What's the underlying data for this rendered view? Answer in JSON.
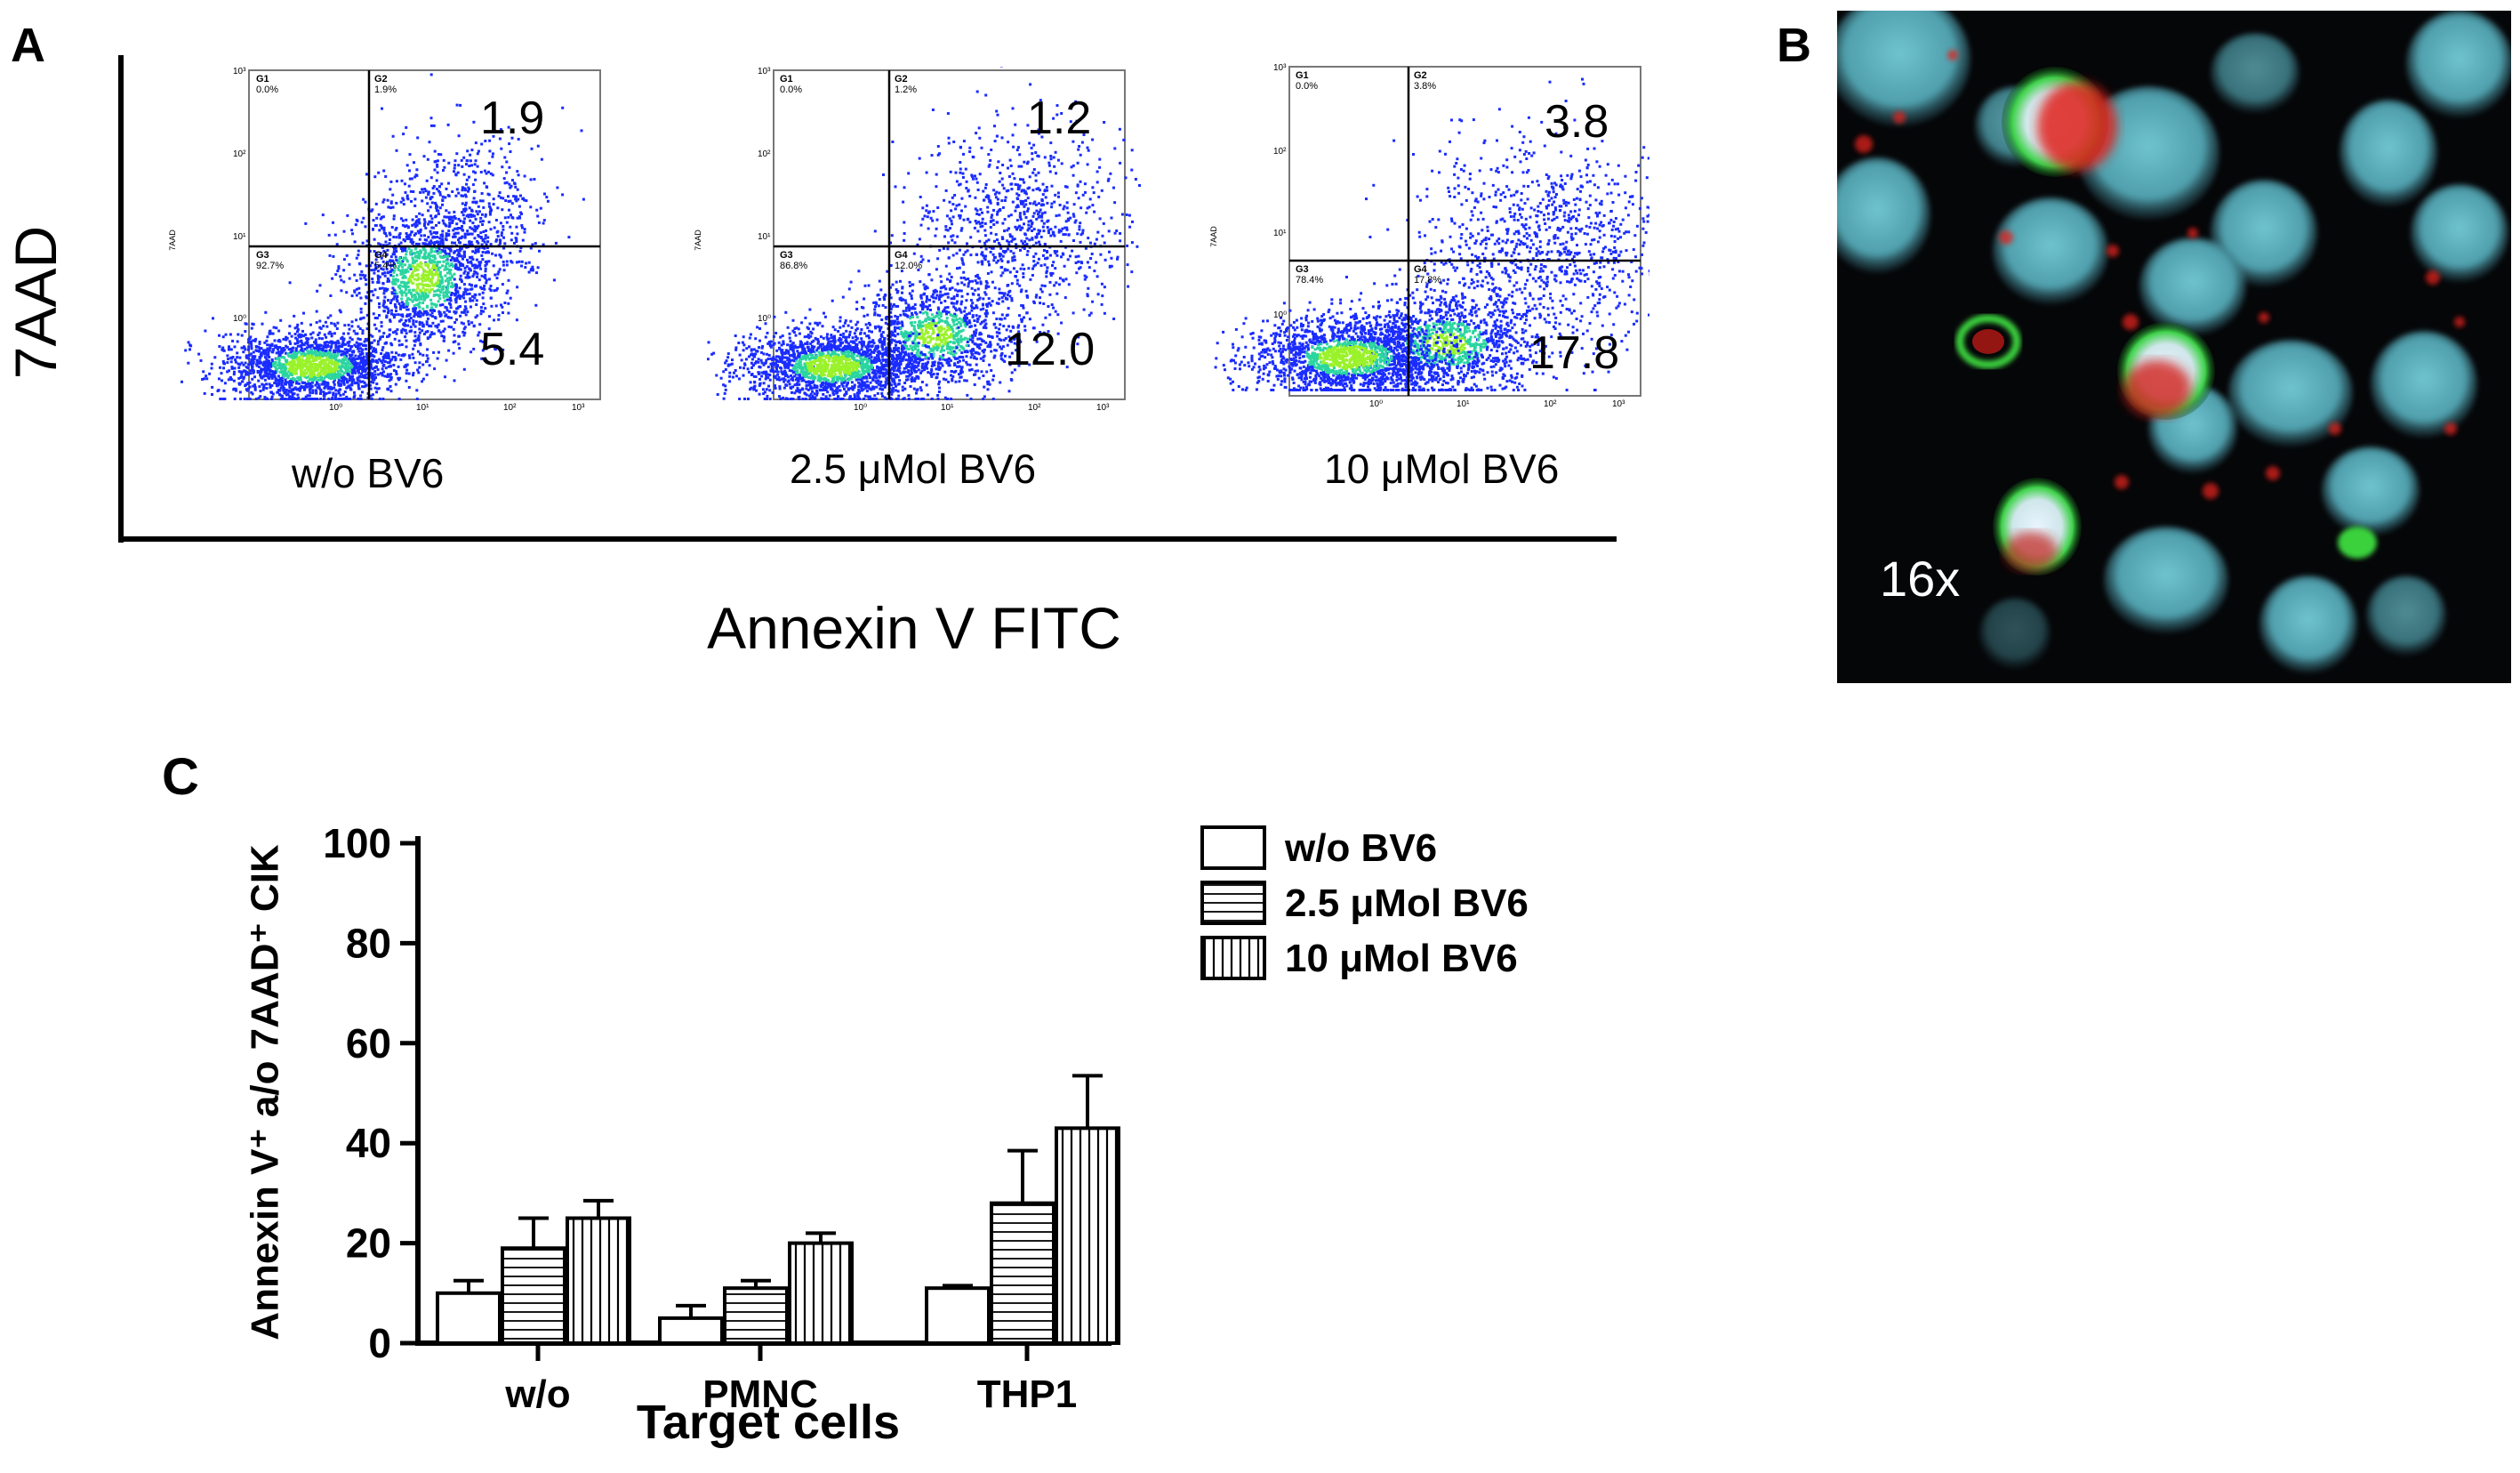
{
  "panels": {
    "a": {
      "letter": "A",
      "ylabel": "7AAD",
      "xlabel": "Annexin V FITC",
      "plots": [
        {
          "condition": "w/o BV6",
          "q_upper_right": "1.9",
          "q_lower_right": "5.4",
          "gate_labels": {
            "g1": "G1",
            "g1_pct": "0.0%",
            "g2": "G2",
            "g2_pct": "1.9%",
            "g3": "G3",
            "g3_pct": "92.7%",
            "g4": "G4",
            "g4_pct": "5.4%"
          },
          "y_ticks": [
            "10⁰",
            "10¹",
            "10²",
            "10³"
          ],
          "x_ticks": [
            "10⁰",
            "10¹",
            "10²",
            "10³"
          ],
          "axis_label": "7AAD"
        },
        {
          "condition": "2.5 μMol BV6",
          "q_upper_right": "1.2",
          "q_lower_right": "12.0",
          "gate_labels": {
            "g1": "G1",
            "g1_pct": "0.0%",
            "g2": "G2",
            "g2_pct": "1.2%",
            "g3": "G3",
            "g3_pct": "86.8%",
            "g4": "G4",
            "g4_pct": "12.0%"
          },
          "y_ticks": [
            "10⁰",
            "10¹",
            "10²",
            "10³"
          ],
          "x_ticks": [
            "10⁰",
            "10¹",
            "10²",
            "10³"
          ],
          "axis_label": "7AAD"
        },
        {
          "condition": "10 μMol BV6",
          "q_upper_right": "3.8",
          "q_lower_right": "17.8",
          "gate_labels": {
            "g1": "G1",
            "g1_pct": "0.0%",
            "g2": "G2",
            "g2_pct": "3.8%",
            "g3": "G3",
            "g3_pct": "78.4%",
            "g4": "G4",
            "g4_pct": "17.8%"
          },
          "y_ticks": [
            "10⁰",
            "10¹",
            "10²",
            "10³"
          ],
          "x_ticks": [
            "10⁰",
            "10¹",
            "10²",
            "10³"
          ],
          "axis_label": "7AAD"
        }
      ]
    },
    "b": {
      "letter": "B",
      "magnification": "16x"
    },
    "c": {
      "letter": "C"
    }
  },
  "chart_data": {
    "type": "bar",
    "xlabel": "Target cells",
    "ylabel": "Annexin V⁺ a/o 7AAD⁺ CIK",
    "categories": [
      "w/o",
      "PMNC",
      "THP1"
    ],
    "ylim": [
      0,
      100
    ],
    "yticks": [
      0,
      20,
      40,
      60,
      80,
      100
    ],
    "legend_position": "top-right",
    "series": [
      {
        "name": "w/o BV6",
        "pattern": "open",
        "values": [
          10,
          5,
          11
        ],
        "errors": [
          2.5,
          2.5,
          0.5
        ]
      },
      {
        "name": "2.5 μMol BV6",
        "pattern": "horizontal-lines",
        "values": [
          19,
          11,
          28
        ],
        "errors": [
          6,
          1.5,
          10.5
        ]
      },
      {
        "name": "10 μMol BV6",
        "pattern": "vertical-lines",
        "values": [
          25,
          20,
          43
        ],
        "errors": [
          3.5,
          2,
          10.5
        ]
      }
    ]
  },
  "colors": {
    "dot_low": "#1a2cff",
    "dot_mid": "#2bd5a0",
    "dot_high": "#9af22a",
    "micro_bg": "#050608",
    "micro_nuclei": "#5fb6c2",
    "micro_red": "#e0241a",
    "micro_green": "#36d23a"
  }
}
